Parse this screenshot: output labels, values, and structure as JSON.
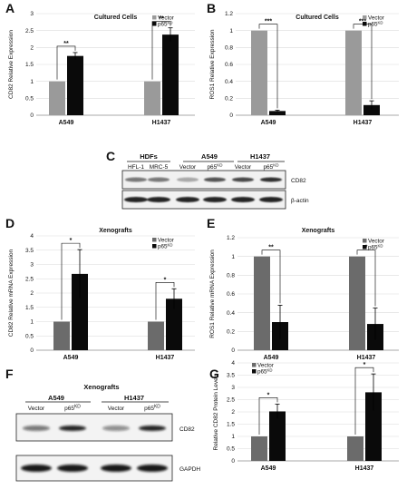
{
  "panels": {
    "A": "A",
    "B": "B",
    "C": "C",
    "D": "D",
    "E": "E",
    "F": "F",
    "G": "G"
  },
  "chart_data": [
    {
      "id": "A",
      "type": "bar",
      "title": "Cultured Cells",
      "ylabel": "CD82 Relative Expression",
      "categories": [
        "A549",
        "H1437"
      ],
      "ylim": [
        0,
        3
      ],
      "yticks": [
        0,
        0.5,
        1,
        1.5,
        2,
        2.5,
        3
      ],
      "series": [
        {
          "name": "Vector",
          "values": [
            1.0,
            1.0
          ],
          "errors": [
            0,
            0
          ],
          "color": "#9a9a9a"
        },
        {
          "name": "p65KD",
          "values": [
            1.75,
            2.38
          ],
          "errors": [
            0.1,
            0.2
          ],
          "color": "#0a0a0a"
        }
      ],
      "significance": [
        "**",
        "**"
      ],
      "legend": "top-right"
    },
    {
      "id": "B",
      "type": "bar",
      "title": "Cultured Cells",
      "ylabel": "ROS1 Relative Expression",
      "categories": [
        "A549",
        "H1437"
      ],
      "ylim": [
        0,
        1.2
      ],
      "yticks": [
        0,
        0.2,
        0.4,
        0.6,
        0.8,
        1,
        1.2
      ],
      "series": [
        {
          "name": "Vector",
          "values": [
            1.0,
            1.0
          ],
          "errors": [
            0,
            0
          ],
          "color": "#9a9a9a"
        },
        {
          "name": "p65KD",
          "values": [
            0.05,
            0.12
          ],
          "errors": [
            0.01,
            0.05
          ],
          "color": "#0a0a0a"
        }
      ],
      "significance": [
        "***",
        "***"
      ],
      "legend": "top-right"
    },
    {
      "id": "D",
      "type": "bar",
      "title": "Xenografts",
      "ylabel": "CD82 Relative mRNA Expression",
      "categories": [
        "A549",
        "H1437"
      ],
      "ylim": [
        0,
        4
      ],
      "yticks": [
        0,
        0.5,
        1,
        1.5,
        2,
        2.5,
        3,
        3.5,
        4
      ],
      "series": [
        {
          "name": "Vector",
          "values": [
            1.0,
            1.0
          ],
          "errors": [
            0,
            0
          ],
          "color": "#6b6b6b"
        },
        {
          "name": "p65KD",
          "values": [
            2.67,
            1.8
          ],
          "errors": [
            0.85,
            0.35
          ],
          "color": "#0a0a0a"
        }
      ],
      "significance": [
        "*",
        "*"
      ],
      "legend": "top-right"
    },
    {
      "id": "E",
      "type": "bar",
      "title": "Xenografts",
      "ylabel": "ROS1 Relative mRNA Expression",
      "categories": [
        "A549",
        "H1437"
      ],
      "ylim": [
        0,
        1.2
      ],
      "yticks": [
        0,
        0.2,
        0.4,
        0.6,
        0.8,
        1,
        1.2
      ],
      "series": [
        {
          "name": "Vector",
          "values": [
            1.0,
            1.0
          ],
          "errors": [
            0,
            0
          ],
          "color": "#6b6b6b"
        },
        {
          "name": "p65KD",
          "values": [
            0.3,
            0.28
          ],
          "errors": [
            0.18,
            0.17
          ],
          "color": "#0a0a0a"
        }
      ],
      "significance": [
        "**",
        "*"
      ],
      "legend": "top-right"
    },
    {
      "id": "G",
      "type": "bar",
      "title": "",
      "ylabel": "Relative CD82 Protein Levels",
      "categories": [
        "A549",
        "H1437"
      ],
      "ylim": [
        0,
        4
      ],
      "yticks": [
        0,
        0.5,
        1,
        1.5,
        2,
        2.5,
        3,
        3.5,
        4
      ],
      "series": [
        {
          "name": "Vector",
          "values": [
            1.0,
            1.0
          ],
          "errors": [
            0,
            0
          ],
          "color": "#6b6b6b"
        },
        {
          "name": "p65KD",
          "values": [
            2.02,
            2.8
          ],
          "errors": [
            0.3,
            0.75
          ],
          "color": "#0a0a0a"
        }
      ],
      "significance": [
        "*",
        "*"
      ],
      "legend": "top-left"
    }
  ],
  "blot_c": {
    "groups": [
      "HDFs",
      "A549",
      "H1437"
    ],
    "lanes": [
      "HFL-1",
      "MRC-5",
      "Vector",
      "p65",
      "Vector",
      "p65"
    ],
    "lane_sup": [
      "",
      "",
      "",
      "KD",
      "",
      "KD"
    ],
    "bands": [
      "CD82",
      "β-actin"
    ]
  },
  "blot_f": {
    "title": "Xenografts",
    "groups": [
      "A549",
      "H1437"
    ],
    "lanes": [
      "Vector",
      "p65",
      "Vector",
      "p65"
    ],
    "lane_sup": [
      "",
      "KD",
      "",
      "KD"
    ],
    "bands": [
      "CD82",
      "GAPDH"
    ]
  }
}
